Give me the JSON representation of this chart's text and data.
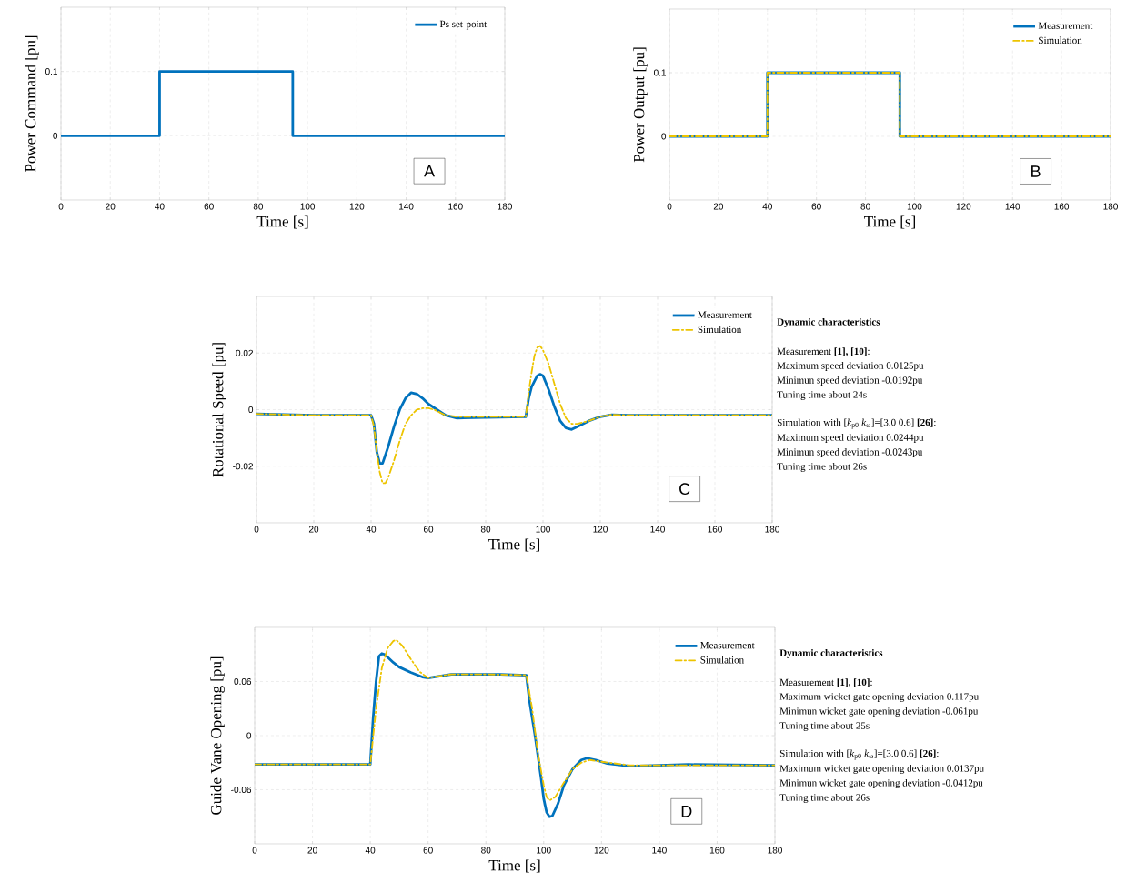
{
  "chart_data": [
    {
      "type": "step",
      "xlabel": "Time [s]",
      "ylabel": "Power Command [pu]",
      "xlim": [
        0,
        180
      ],
      "ylim": [
        -0.1,
        0.2
      ],
      "xticks": [
        0,
        20,
        40,
        60,
        80,
        100,
        120,
        140,
        160,
        180
      ],
      "yticks": [
        0,
        0.1
      ],
      "grid": true,
      "legend": "top right",
      "annotations": [
        "A"
      ],
      "series": [
        {
          "name": "Ps set-point",
          "color": "#0072bd",
          "line_style": "solid",
          "x": [
            0,
            40,
            94,
            180
          ],
          "values": [
            0,
            0.1,
            0,
            0
          ]
        }
      ]
    },
    {
      "type": "step",
      "xlabel": "Time [s]",
      "ylabel": "Power Output [pu]",
      "xlim": [
        0,
        180
      ],
      "ylim": [
        -0.1,
        0.2
      ],
      "xticks": [
        0,
        20,
        40,
        60,
        80,
        100,
        120,
        140,
        160,
        180
      ],
      "yticks": [
        0,
        0.1
      ],
      "grid": true,
      "legend": "top right",
      "annotations": [
        "B"
      ],
      "series": [
        {
          "name": "Measurement",
          "color": "#0072bd",
          "line_style": "solid",
          "x": [
            0,
            40,
            94,
            180
          ],
          "values": [
            0,
            0.1,
            0,
            0
          ]
        },
        {
          "name": "Simulation",
          "color": "#edc400",
          "line_style": "dashed",
          "x": [
            0,
            40,
            94,
            180
          ],
          "values": [
            0,
            0.1,
            0,
            0
          ]
        }
      ]
    },
    {
      "type": "line",
      "xlabel": "Time [s]",
      "ylabel": "Rotational Speed [pu]",
      "xlim": [
        0,
        180
      ],
      "ylim": [
        -0.04,
        0.04
      ],
      "xticks": [
        0,
        20,
        40,
        60,
        80,
        100,
        120,
        140,
        160,
        180
      ],
      "yticks": [
        -0.02,
        0,
        0.02
      ],
      "grid": true,
      "legend": "top right",
      "annotations": [
        "C",
        "Dynamic characteristics",
        "Measurement **[1], [10]**:",
        "Maximum speed deviation 0.0125pu",
        "Minimun speed deviation -0.0192pu",
        "Tuning time about 24s",
        "Simulation with [*k*$_{p0}$ *k*$_{ω}$]=[3.0 0.6] **[26]**:",
        "Maximum speed deviation 0.0244pu",
        "Minimun speed deviation -0.0243pu",
        "Tuning time about 26s"
      ],
      "series": [
        {
          "name": "Measurement",
          "color": "#0072bd",
          "line_style": "solid",
          "x": [
            0,
            20,
            40,
            41,
            42,
            43,
            44,
            46,
            48,
            50,
            52,
            54,
            56,
            58,
            60,
            63,
            66,
            70,
            80,
            94,
            95,
            96,
            98,
            99,
            100,
            102,
            104,
            106,
            108,
            110,
            112,
            116,
            120,
            124,
            130,
            150,
            180
          ],
          "values": [
            -0.0015,
            -0.002,
            -0.002,
            -0.005,
            -0.015,
            -0.019,
            -0.019,
            -0.013,
            -0.006,
            0.0,
            0.004,
            0.006,
            0.0055,
            0.004,
            0.002,
            0.0,
            -0.002,
            -0.003,
            -0.0028,
            -0.0025,
            0.004,
            0.008,
            0.012,
            0.0125,
            0.012,
            0.007,
            0.001,
            -0.004,
            -0.0065,
            -0.007,
            -0.006,
            -0.004,
            -0.0025,
            -0.0018,
            -0.002,
            -0.002,
            -0.002
          ]
        },
        {
          "name": "Simulation",
          "color": "#edc400",
          "line_style": "dashed",
          "x": [
            0,
            20,
            40,
            41,
            42,
            43,
            44,
            45,
            46,
            48,
            50,
            52,
            54,
            56,
            58,
            60,
            62,
            64,
            66,
            70,
            80,
            94,
            95,
            96,
            97,
            98,
            99,
            100,
            102,
            104,
            106,
            108,
            110,
            112,
            116,
            120,
            124,
            130,
            180
          ],
          "values": [
            -0.0015,
            -0.002,
            -0.002,
            -0.006,
            -0.015,
            -0.022,
            -0.026,
            -0.026,
            -0.024,
            -0.018,
            -0.011,
            -0.005,
            -0.002,
            0.0,
            0.0005,
            0.0005,
            0.0,
            -0.001,
            -0.002,
            -0.0025,
            -0.0025,
            -0.0025,
            0.006,
            0.013,
            0.019,
            0.022,
            0.0225,
            0.021,
            0.016,
            0.009,
            0.002,
            -0.003,
            -0.005,
            -0.005,
            -0.004,
            -0.0025,
            -0.0018,
            -0.002,
            -0.002
          ]
        }
      ]
    },
    {
      "type": "line",
      "xlabel": "Time [s]",
      "ylabel": "Guide Vane Opening [pu]",
      "xlim": [
        0,
        180
      ],
      "ylim": [
        -0.12,
        0.12
      ],
      "xticks": [
        0,
        20,
        40,
        60,
        80,
        100,
        120,
        140,
        160,
        180
      ],
      "yticks": [
        -0.06,
        0,
        0.06
      ],
      "grid": true,
      "legend": "top right",
      "annotations": [
        "D",
        "Dynamic characteristics",
        "Measurement **[1], [10]**:",
        "Maximum wicket gate opening deviation 0.117pu",
        "Minimun wicket gate opening deviation -0.061pu",
        "Tuning time about 25s",
        "Simulation with [*k*$_{p0}$ *k*$_{ω}$]=[3.0 0.6] **[26]**:",
        "Maximum wicket gate opening deviation 0.0137pu",
        "Minimun wicket gate opening deviation -0.0412pu",
        "Tuning time about 26s"
      ],
      "series": [
        {
          "name": "Measurement",
          "color": "#0072bd",
          "line_style": "solid",
          "x": [
            0,
            40,
            41,
            42,
            43,
            44,
            45,
            48,
            50,
            54,
            58,
            60,
            64,
            68,
            75,
            85,
            94,
            95,
            97,
            99,
            100,
            101,
            102,
            103,
            105,
            107,
            110,
            113,
            115,
            118,
            122,
            130,
            150,
            180
          ],
          "values": [
            -0.032,
            -0.032,
            0.02,
            0.06,
            0.088,
            0.091,
            0.09,
            0.081,
            0.076,
            0.07,
            0.065,
            0.064,
            0.066,
            0.068,
            0.068,
            0.068,
            0.067,
            0.04,
            0.0,
            -0.045,
            -0.07,
            -0.085,
            -0.09,
            -0.089,
            -0.075,
            -0.055,
            -0.037,
            -0.027,
            -0.025,
            -0.027,
            -0.031,
            -0.034,
            -0.032,
            -0.033
          ]
        },
        {
          "name": "Simulation",
          "color": "#edc400",
          "line_style": "dashed",
          "x": [
            0,
            40,
            42,
            44,
            46,
            48,
            49,
            51,
            54,
            57,
            60,
            64,
            68,
            80,
            94,
            96,
            98,
            100,
            101,
            102,
            104,
            107,
            110,
            113,
            116,
            120,
            130,
            180
          ],
          "values": [
            -0.032,
            -0.032,
            0.03,
            0.075,
            0.097,
            0.105,
            0.106,
            0.1,
            0.085,
            0.071,
            0.064,
            0.066,
            0.068,
            0.068,
            0.067,
            0.03,
            -0.02,
            -0.055,
            -0.068,
            -0.072,
            -0.068,
            -0.052,
            -0.037,
            -0.03,
            -0.027,
            -0.029,
            -0.033,
            -0.033
          ]
        }
      ]
    }
  ]
}
